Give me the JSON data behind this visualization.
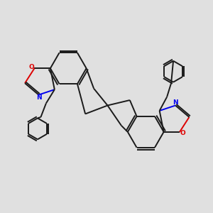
{
  "background_color": "#e0e0e0",
  "bond_color": "#1a1a1a",
  "N_color": "#0000ee",
  "O_color": "#dd0000",
  "line_width": 1.4,
  "figsize": [
    3.0,
    3.0
  ],
  "dpi": 100,
  "xlim": [
    0,
    10
  ],
  "ylim": [
    0,
    10
  ]
}
